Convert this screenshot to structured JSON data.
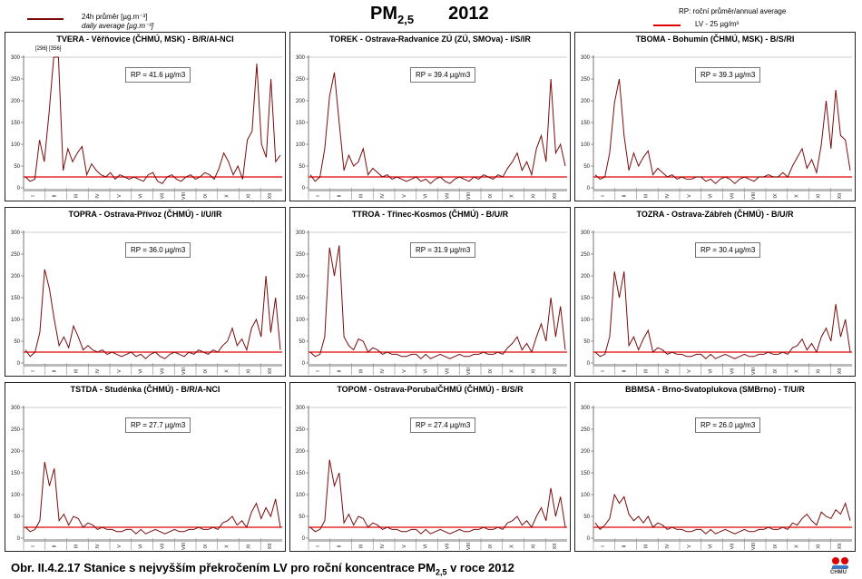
{
  "legend": {
    "daily_cz": "24h průměr [µg.m⁻³]",
    "daily_en": "daily average [µg.m⁻³]",
    "rp_note": "RP: roční průměr/annual average",
    "lv_label": "LV  - 25 µg/m³"
  },
  "header": {
    "title": "PM",
    "title_sub": "2,5",
    "year": "2012"
  },
  "caption": {
    "text": "Obr. II.4.2.17  Stanice s nejvyšším překročením LV pro roční koncentrace PM",
    "sub": "2,5",
    "tail": " v roce 2012"
  },
  "logo": {
    "text": "ČHMÚ"
  },
  "colors": {
    "series": "#7a0c0c",
    "limit": "#e00000"
  },
  "chart_data": {
    "type": "line",
    "x_unit": "month of 2012 (weekly sampled)",
    "months": [
      "I",
      "II",
      "III",
      "IV",
      "V",
      "VI",
      "VII",
      "VIII",
      "IX",
      "X",
      "XI",
      "XII"
    ],
    "yticks": [
      0,
      50,
      100,
      150,
      200,
      250,
      300
    ],
    "ylim": [
      0,
      300
    ],
    "limit_value": 25,
    "panels": [
      {
        "title": "TVERA -  Věřňovice (ČHMÚ, MSK) - B/R/AI-NCI",
        "rp": "RP = 41.6 µg/m3",
        "note": "[296] [356]",
        "values": [
          25,
          15,
          20,
          110,
          60,
          170,
          300,
          300,
          40,
          90,
          60,
          80,
          95,
          30,
          55,
          40,
          30,
          25,
          35,
          20,
          30,
          25,
          20,
          25,
          20,
          15,
          30,
          35,
          15,
          10,
          25,
          30,
          20,
          15,
          25,
          30,
          20,
          25,
          35,
          30,
          20,
          45,
          80,
          60,
          30,
          50,
          20,
          110,
          130,
          285,
          100,
          70,
          250,
          60,
          75
        ]
      },
      {
        "title": "TOREK - Ostrava-Radvanice ZÚ (ZÚ, SMOva) - I/S/IR",
        "rp": "RP = 39.4 µg/m3",
        "note": "",
        "values": [
          30,
          15,
          25,
          90,
          210,
          265,
          150,
          40,
          75,
          50,
          60,
          90,
          30,
          45,
          35,
          25,
          30,
          20,
          25,
          20,
          15,
          20,
          25,
          15,
          20,
          10,
          20,
          25,
          15,
          10,
          20,
          25,
          20,
          15,
          25,
          20,
          30,
          25,
          20,
          30,
          25,
          45,
          60,
          80,
          40,
          60,
          30,
          90,
          120,
          60,
          250,
          80,
          100,
          50
        ]
      },
      {
        "title": "TBOMA - Bohumín (ČHMÚ, MSK) - B/S/RI",
        "rp": "RP = 39.3 µg/m3",
        "note": "",
        "values": [
          30,
          20,
          25,
          80,
          195,
          250,
          120,
          40,
          80,
          50,
          70,
          85,
          30,
          45,
          35,
          25,
          30,
          20,
          25,
          20,
          20,
          25,
          25,
          15,
          20,
          10,
          20,
          25,
          20,
          10,
          20,
          25,
          20,
          15,
          25,
          25,
          30,
          25,
          25,
          35,
          25,
          50,
          70,
          90,
          45,
          65,
          35,
          100,
          200,
          90,
          225,
          120,
          110,
          40
        ]
      },
      {
        "title": "TOPRA - Ostrava-Přívoz (ČHMÚ) - I/U/IR",
        "rp": "RP = 36.0 µg/m3",
        "note": "",
        "values": [
          30,
          15,
          25,
          70,
          215,
          170,
          100,
          40,
          60,
          35,
          85,
          60,
          30,
          40,
          30,
          25,
          30,
          20,
          25,
          20,
          15,
          20,
          25,
          15,
          20,
          10,
          20,
          25,
          15,
          10,
          20,
          25,
          20,
          15,
          25,
          20,
          30,
          25,
          20,
          30,
          25,
          40,
          50,
          80,
          40,
          55,
          30,
          80,
          100,
          60,
          200,
          70,
          150,
          30
        ]
      },
      {
        "title": "TTROA - Třinec-Kosmos (ČHMÚ) - B/U/R",
        "rp": "RP = 31.9 µg/m3",
        "note": "",
        "values": [
          25,
          15,
          20,
          60,
          265,
          200,
          270,
          60,
          40,
          30,
          55,
          50,
          25,
          35,
          30,
          20,
          25,
          20,
          20,
          15,
          15,
          20,
          20,
          10,
          20,
          10,
          15,
          20,
          15,
          10,
          15,
          20,
          15,
          15,
          20,
          20,
          25,
          20,
          20,
          25,
          20,
          35,
          45,
          60,
          30,
          45,
          25,
          60,
          90,
          50,
          150,
          60,
          130,
          30
        ]
      },
      {
        "title": "TOZRA - Ostrava-Zábřeh (ČHMÚ) - B/U/R",
        "rp": "RP = 30.4 µg/m3",
        "note": "",
        "values": [
          25,
          15,
          20,
          60,
          210,
          150,
          210,
          40,
          60,
          30,
          55,
          75,
          25,
          35,
          30,
          20,
          25,
          20,
          20,
          15,
          15,
          20,
          20,
          10,
          20,
          10,
          15,
          20,
          15,
          10,
          15,
          20,
          15,
          15,
          20,
          20,
          25,
          20,
          20,
          25,
          20,
          35,
          40,
          55,
          30,
          45,
          25,
          60,
          80,
          50,
          135,
          60,
          100,
          25
        ]
      },
      {
        "title": "TSTDA - Studénka (ČHMÚ) - B/R/A-NCI",
        "rp": "RP = 27.7 µg/m3",
        "note": "",
        "values": [
          25,
          15,
          20,
          40,
          175,
          120,
          160,
          40,
          55,
          30,
          50,
          45,
          25,
          35,
          30,
          20,
          25,
          20,
          20,
          15,
          15,
          20,
          20,
          10,
          20,
          10,
          15,
          20,
          15,
          10,
          15,
          20,
          15,
          15,
          20,
          20,
          25,
          20,
          20,
          25,
          20,
          35,
          40,
          50,
          30,
          40,
          25,
          60,
          80,
          45,
          70,
          50,
          90,
          25
        ]
      },
      {
        "title": "TOPOM - Ostrava-Poruba/ČHMÚ (ČHMÚ) - B/S/R",
        "rp": "RP = 27.4 µg/m3",
        "note": "",
        "values": [
          25,
          15,
          20,
          40,
          180,
          120,
          150,
          35,
          55,
          30,
          50,
          45,
          25,
          35,
          30,
          20,
          25,
          20,
          20,
          15,
          15,
          20,
          20,
          10,
          20,
          10,
          15,
          20,
          15,
          10,
          15,
          20,
          15,
          15,
          20,
          20,
          25,
          20,
          20,
          25,
          20,
          35,
          40,
          50,
          30,
          40,
          25,
          50,
          70,
          40,
          115,
          50,
          95,
          25
        ]
      },
      {
        "title": "BBMSA - Brno-Svatoplukova (SMBrno) - T/U/R",
        "rp": "RP = 26.0 µg/m3",
        "note": "",
        "values": [
          35,
          20,
          30,
          45,
          100,
          80,
          95,
          55,
          40,
          50,
          35,
          50,
          25,
          35,
          30,
          20,
          25,
          20,
          20,
          15,
          15,
          20,
          20,
          10,
          20,
          10,
          15,
          20,
          15,
          10,
          15,
          20,
          15,
          15,
          20,
          20,
          25,
          20,
          20,
          25,
          20,
          35,
          30,
          45,
          55,
          40,
          30,
          60,
          50,
          45,
          65,
          55,
          80,
          40
        ]
      }
    ]
  }
}
